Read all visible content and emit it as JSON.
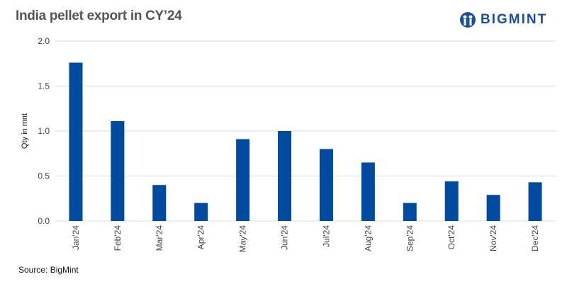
{
  "header": {
    "title": "India pellet export in CY’24"
  },
  "logo": {
    "text": "BIGMINT",
    "color": "#1a4fa0"
  },
  "footer": {
    "source": "Source: BigMint"
  },
  "chart_data": {
    "type": "bar",
    "title": "India pellet export in CY’24",
    "xlabel": "",
    "ylabel": "Qty in mnt",
    "ylim": [
      0,
      2.0
    ],
    "yticks": [
      "0.0",
      "0.5",
      "1.0",
      "1.5",
      "2.0"
    ],
    "grid": true,
    "bar_color": "#004aa0",
    "categories": [
      "Jan'24",
      "Feb'24",
      "Mar'24",
      "Apr'24",
      "May'24",
      "Jun'24",
      "Jul'24",
      "Aug'24",
      "Sep'24",
      "Oct'24",
      "Nov'24",
      "Dec'24"
    ],
    "values": [
      1.76,
      1.11,
      0.4,
      0.2,
      0.91,
      1.0,
      0.8,
      0.65,
      0.2,
      0.44,
      0.29,
      0.43
    ]
  }
}
